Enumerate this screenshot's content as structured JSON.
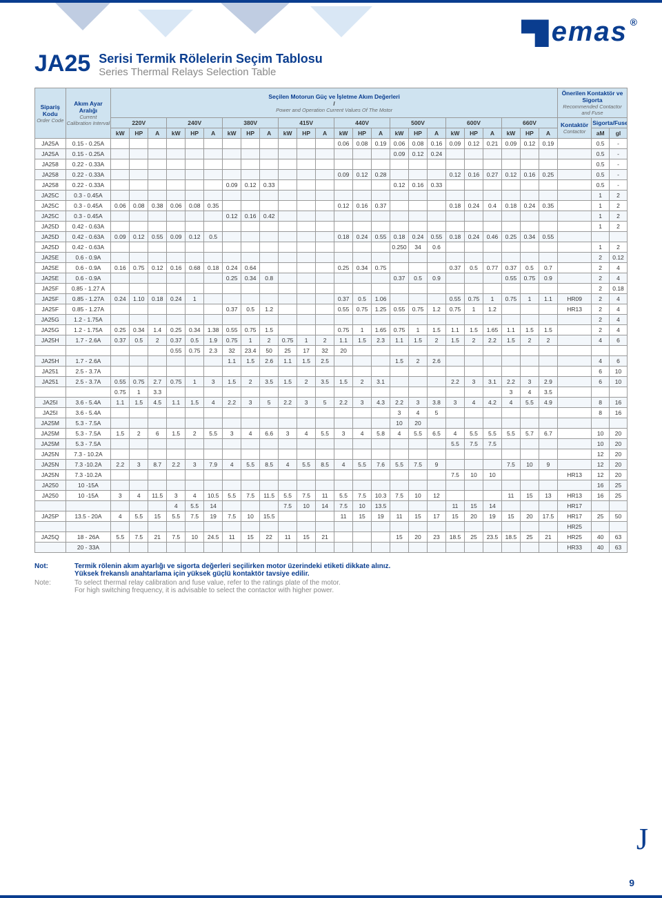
{
  "logo_text": "emas",
  "title_code": "JA25",
  "title_tr": "Serisi Termik Rölelerin Seçim Tablosu",
  "title_en": "Series Thermal Relays Selection Table",
  "hdr": {
    "order_tr": "Sipariş Kodu",
    "order_en": "Order Code",
    "range_tr": "Akım Ayar Aralığı",
    "range_en": "Current Calibration Interval",
    "motor_tr": "Seçilen Motorun Güç ve İşletme Akım Değerleri",
    "motor_en": "Power and Operation Current Values Of The Motor",
    "rec_tr": "Önerilen Kontaktör ve Sigorta",
    "rec_en": "Recommended Contactor and Fuse",
    "contactor_tr": "Kontaktör",
    "contactor_en": "Contactor",
    "fuse_tr": "Sigorta",
    "fuse_en": "Fuses",
    "kW": "kW",
    "HP": "HP",
    "A": "A",
    "aM": "aM",
    "gl": "gl"
  },
  "voltages": [
    "220V",
    "240V",
    "380V",
    "415V",
    "440V",
    "500V",
    "600V",
    "660V"
  ],
  "table_colors": {
    "header_bg": "#cfe3f0",
    "border": "#999999",
    "row_alt_bg": "#f3f7fb",
    "text_tr": "#0a3d8f",
    "text_en": "#666666"
  },
  "rows": [
    {
      "code": "JA25A",
      "range": "0.15 - 0.25A",
      "v": [
        "",
        "",
        "",
        "",
        "",
        "",
        "",
        "",
        "",
        "",
        "",
        "",
        "0.06",
        "0.08",
        "0.19",
        "0.06",
        "0.08",
        "0.16",
        "0.09",
        "0.12",
        "0.21",
        "0.09",
        "0.12",
        "0.19"
      ],
      "cont": "",
      "am": "0.5",
      "gl": "-"
    },
    {
      "code": "JA25A",
      "range": "0.15 - 0.25A",
      "v": [
        "",
        "",
        "",
        "",
        "",
        "",
        "",
        "",
        "",
        "",
        "",
        "",
        "",
        "",
        "",
        "0.09",
        "0.12",
        "0.24",
        "",
        "",
        "",
        "",
        "",
        ""
      ],
      "cont": "",
      "am": "0.5",
      "gl": "-"
    },
    {
      "code": "JA258",
      "range": "0.22 - 0.33A",
      "v": [
        "",
        "",
        "",
        "",
        "",
        "",
        "",
        "",
        "",
        "",
        "",
        "",
        "",
        "",
        "",
        "",
        "",
        "",
        "",
        "",
        "",
        "",
        "",
        ""
      ],
      "cont": "",
      "am": "0.5",
      "gl": "-"
    },
    {
      "code": "JA258",
      "range": "0.22 - 0.33A",
      "v": [
        "",
        "",
        "",
        "",
        "",
        "",
        "",
        "",
        "",
        "",
        "",
        "",
        "0.09",
        "0.12",
        "0.28",
        "",
        "",
        "",
        "0.12",
        "0.16",
        "0.27",
        "0.12",
        "0.16",
        "0.25"
      ],
      "cont": "",
      "am": "0.5",
      "gl": "-"
    },
    {
      "code": "JA258",
      "range": "0.22 - 0.33A",
      "v": [
        "",
        "",
        "",
        "",
        "",
        "",
        "0.09",
        "0.12",
        "0.33",
        "",
        "",
        "",
        "",
        "",
        "",
        "0.12",
        "0.16",
        "0.33",
        "",
        "",
        "",
        "",
        "",
        ""
      ],
      "cont": "",
      "am": "0.5",
      "gl": "-"
    },
    {
      "code": "JA25C",
      "range": "0.3 - 0.45A",
      "v": [
        "",
        "",
        "",
        "",
        "",
        "",
        "",
        "",
        "",
        "",
        "",
        "",
        "",
        "",
        "",
        "",
        "",
        "",
        "",
        "",
        "",
        "",
        "",
        ""
      ],
      "cont": "",
      "am": "1",
      "gl": "2"
    },
    {
      "code": "JA25C",
      "range": "0.3 - 0.45A",
      "v": [
        "0.06",
        "0.08",
        "0.38",
        "0.06",
        "0.08",
        "0.35",
        "",
        "",
        "",
        "",
        "",
        "",
        "0.12",
        "0.16",
        "0.37",
        "",
        "",
        "",
        "0.18",
        "0.24",
        "0.4",
        "0.18",
        "0.24",
        "0.35"
      ],
      "cont": "",
      "am": "1",
      "gl": "2"
    },
    {
      "code": "JA25C",
      "range": "0.3 - 0.45A",
      "v": [
        "",
        "",
        "",
        "",
        "",
        "",
        "0.12",
        "0.16",
        "0.42",
        "",
        "",
        "",
        "",
        "",
        "",
        "",
        "",
        "",
        "",
        "",
        "",
        "",
        "",
        ""
      ],
      "cont": "",
      "am": "1",
      "gl": "2"
    },
    {
      "code": "JA25D",
      "range": "0.42 - 0.63A",
      "v": [
        "",
        "",
        "",
        "",
        "",
        "",
        "",
        "",
        "",
        "",
        "",
        "",
        "",
        "",
        "",
        "",
        "",
        "",
        "",
        "",
        "",
        "",
        "",
        ""
      ],
      "cont": "",
      "am": "1",
      "gl": "2"
    },
    {
      "code": "JA25D",
      "range": "0.42 - 0.63A",
      "v": [
        "0.09",
        "0.12",
        "0.55",
        "0.09",
        "0.12",
        "0.5",
        "",
        "",
        "",
        "",
        "",
        "",
        "0.18",
        "0.24",
        "0.55",
        "0.18",
        "0.24",
        "0.55",
        "0.18",
        "0.24",
        "0.46",
        "0.25",
        "0.34",
        "0.55"
      ],
      "cont": "",
      "am": "",
      "gl": ""
    },
    {
      "code": "JA25D",
      "range": "0.42 - 0.63A",
      "v": [
        "",
        "",
        "",
        "",
        "",
        "",
        "",
        "",
        "",
        "",
        "",
        "",
        "",
        "",
        "",
        "0.250",
        "34",
        "0.6",
        "",
        "",
        "",
        "",
        "",
        ""
      ],
      "cont": "",
      "am": "1",
      "gl": "2"
    },
    {
      "code": "JA25E",
      "range": "0.6 - 0.9A",
      "v": [
        "",
        "",
        "",
        "",
        "",
        "",
        "",
        "",
        "",
        "",
        "",
        "",
        "",
        "",
        "",
        "",
        "",
        "",
        "",
        "",
        "",
        "",
        "",
        ""
      ],
      "cont": "",
      "am": "2",
      "gl": "0.12"
    },
    {
      "code": "JA25E",
      "range": "0.6 - 0.9A",
      "v": [
        "0.16",
        "0.75",
        "0.12",
        "0.16",
        "0.68",
        "0.18",
        "0.24",
        "0.64",
        "",
        "",
        "",
        "",
        "0.25",
        "0.34",
        "0.75",
        "",
        "",
        "",
        "0.37",
        "0.5",
        "0.77",
        "0.37",
        "0.5",
        "0.7"
      ],
      "cont": "",
      "am": "2",
      "gl": "4"
    },
    {
      "code": "JA25E",
      "range": "0.6 - 0.9A",
      "v": [
        "",
        "",
        "",
        "",
        "",
        "",
        "0.25",
        "0.34",
        "0.8",
        "",
        "",
        "",
        "",
        "",
        "",
        "0.37",
        "0.5",
        "0.9",
        "",
        "",
        "",
        "0.55",
        "0.75",
        "0.9"
      ],
      "cont": "",
      "am": "2",
      "gl": "4"
    },
    {
      "code": "JA25F",
      "range": "0.85 - 1.27 A",
      "v": [
        "",
        "",
        "",
        "",
        "",
        "",
        "",
        "",
        "",
        "",
        "",
        "",
        "",
        "",
        "",
        "",
        "",
        "",
        "",
        "",
        "",
        "",
        "",
        ""
      ],
      "cont": "",
      "am": "2",
      "gl": "0.18"
    },
    {
      "code": "JA25F",
      "range": "0.85 - 1.27A",
      "v": [
        "0.24",
        "1.10",
        "0.18",
        "0.24",
        "1",
        "",
        "",
        "",
        "",
        "",
        "",
        "",
        "0.37",
        "0.5",
        "1.06",
        "",
        "",
        "",
        "0.55",
        "0.75",
        "1",
        "0.75",
        "1",
        "1.1"
      ],
      "cont": "HR09",
      "am": "2",
      "gl": "4"
    },
    {
      "code": "JA25F",
      "range": "0.85 - 1.27A",
      "v": [
        "",
        "",
        "",
        "",
        "",
        "",
        "0.37",
        "0.5",
        "1.2",
        "",
        "",
        "",
        "0.55",
        "0.75",
        "1.25",
        "0.55",
        "0.75",
        "1.2",
        "0.75",
        "1",
        "1.2",
        "",
        "",
        ""
      ],
      "cont": "HR13",
      "am": "2",
      "gl": "4"
    },
    {
      "code": "JA25G",
      "range": "1.2 - 1.75A",
      "v": [
        "",
        "",
        "",
        "",
        "",
        "",
        "",
        "",
        "",
        "",
        "",
        "",
        "",
        "",
        "",
        "",
        "",
        "",
        "",
        "",
        "",
        "",
        "",
        ""
      ],
      "cont": "",
      "am": "2",
      "gl": "4"
    },
    {
      "code": "JA25G",
      "range": "1.2 - 1.75A",
      "v": [
        "0.25",
        "0.34",
        "1.4",
        "0.25",
        "0.34",
        "1.38",
        "0.55",
        "0.75",
        "1.5",
        "",
        "",
        "",
        "0.75",
        "1",
        "1.65",
        "0.75",
        "1",
        "1.5",
        "1.1",
        "1.5",
        "1.65",
        "1.1",
        "1.5",
        "1.5"
      ],
      "cont": "",
      "am": "2",
      "gl": "4"
    },
    {
      "code": "JA25H",
      "range": "1.7 - 2.6A",
      "v": [
        "0.37",
        "0.5",
        "2",
        "0.37",
        "0.5",
        "1.9",
        "0.75",
        "1",
        "2",
        "0.75",
        "1",
        "2",
        "1.1",
        "1.5",
        "2.3",
        "1.1",
        "1.5",
        "2",
        "1.5",
        "2",
        "2.2",
        "1.5",
        "2",
        "2"
      ],
      "cont": "",
      "am": "4",
      "gl": "6"
    },
    {
      "code": "",
      "range": "",
      "v": [
        "",
        "",
        "",
        "0.55",
        "0.75",
        "2.3",
        "32",
        "23.4",
        "50",
        "25",
        "17",
        "32",
        "20",
        "",
        "",
        "",
        "",
        "",
        "",
        "",
        "",
        "",
        "",
        ""
      ],
      "cont": "",
      "am": "",
      "gl": ""
    },
    {
      "code": "JA25H",
      "range": "1.7 - 2.6A",
      "v": [
        "",
        "",
        "",
        "",
        "",
        "",
        "1.1",
        "1.5",
        "2.6",
        "1.1",
        "1.5",
        "2.5",
        "",
        "",
        "",
        "1.5",
        "2",
        "2.6",
        "",
        "",
        "",
        "",
        "",
        ""
      ],
      "cont": "",
      "am": "4",
      "gl": "6"
    },
    {
      "code": "JA251",
      "range": "2.5 - 3.7A",
      "v": [
        "",
        "",
        "",
        "",
        "",
        "",
        "",
        "",
        "",
        "",
        "",
        "",
        "",
        "",
        "",
        "",
        "",
        "",
        "",
        "",
        "",
        "",
        "",
        ""
      ],
      "cont": "",
      "am": "6",
      "gl": "10"
    },
    {
      "code": "JA251",
      "range": "2.5 - 3.7A",
      "v": [
        "0.55",
        "0.75",
        "2.7",
        "0.75",
        "1",
        "3",
        "1.5",
        "2",
        "3.5",
        "1.5",
        "2",
        "3.5",
        "1.5",
        "2",
        "3.1",
        "",
        "",
        "",
        "2.2",
        "3",
        "3.1",
        "2.2",
        "3",
        "2.9"
      ],
      "cont": "",
      "am": "6",
      "gl": "10"
    },
    {
      "code": "",
      "range": "",
      "v": [
        "0.75",
        "1",
        "3.3",
        "",
        "",
        "",
        "",
        "",
        "",
        "",
        "",
        "",
        "",
        "",
        "",
        "",
        "",
        "",
        "",
        "",
        "",
        "3",
        "4",
        "3.5"
      ],
      "cont": "",
      "am": "",
      "gl": ""
    },
    {
      "code": "JA25I",
      "range": "3.6 - 5.4A",
      "v": [
        "1.1",
        "1.5",
        "4.5",
        "1.1",
        "1.5",
        "4",
        "2.2",
        "3",
        "5",
        "2.2",
        "3",
        "5",
        "2.2",
        "3",
        "4.3",
        "2.2",
        "3",
        "3.8",
        "3",
        "4",
        "4.2",
        "4",
        "5.5",
        "4.9"
      ],
      "cont": "",
      "am": "8",
      "gl": "16"
    },
    {
      "code": "JA25I",
      "range": "3.6 - 5.4A",
      "v": [
        "",
        "",
        "",
        "",
        "",
        "",
        "",
        "",
        "",
        "",
        "",
        "",
        "",
        "",
        "",
        "3",
        "4",
        "5",
        "",
        "",
        "",
        "",
        "",
        ""
      ],
      "cont": "",
      "am": "8",
      "gl": "16"
    },
    {
      "code": "JA25M",
      "range": "5.3 - 7.5A",
      "v": [
        "",
        "",
        "",
        "",
        "",
        "",
        "",
        "",
        "",
        "",
        "",
        "",
        "",
        "",
        "",
        "10",
        "20",
        "",
        "",
        "",
        "",
        "",
        "",
        ""
      ],
      "cont": "",
      "am": "",
      "gl": ""
    },
    {
      "code": "JA25M",
      "range": "5.3 - 7.5A",
      "v": [
        "1.5",
        "2",
        "6",
        "1.5",
        "2",
        "5.5",
        "3",
        "4",
        "6.6",
        "3",
        "4",
        "5.5",
        "3",
        "4",
        "5.8",
        "4",
        "5.5",
        "6.5",
        "4",
        "5.5",
        "5.5",
        "5.5",
        "5.7",
        "6.7"
      ],
      "cont": "",
      "am": "10",
      "gl": "20"
    },
    {
      "code": "JA25M",
      "range": "5.3 - 7.5A",
      "v": [
        "",
        "",
        "",
        "",
        "",
        "",
        "",
        "",
        "",
        "",
        "",
        "",
        "",
        "",
        "",
        "",
        "",
        "",
        "5.5",
        "7.5",
        "7.5",
        "",
        "",
        ""
      ],
      "cont": "",
      "am": "10",
      "gl": "20"
    },
    {
      "code": "JA25N",
      "range": "7.3 - 10.2A",
      "v": [
        "",
        "",
        "",
        "",
        "",
        "",
        "",
        "",
        "",
        "",
        "",
        "",
        "",
        "",
        "",
        "",
        "",
        "",
        "",
        "",
        "",
        "",
        "",
        ""
      ],
      "cont": "",
      "am": "12",
      "gl": "20"
    },
    {
      "code": "JA25N",
      "range": "7.3 -10.2A",
      "v": [
        "2.2",
        "3",
        "8.7",
        "2.2",
        "3",
        "7.9",
        "4",
        "5.5",
        "8.5",
        "4",
        "5.5",
        "8.5",
        "4",
        "5.5",
        "7.6",
        "5.5",
        "7.5",
        "9",
        "",
        "",
        "",
        "7.5",
        "10",
        "9"
      ],
      "cont": "",
      "am": "12",
      "gl": "20"
    },
    {
      "code": "JA25N",
      "range": "7.3 -10.2A",
      "v": [
        "",
        "",
        "",
        "",
        "",
        "",
        "",
        "",
        "",
        "",
        "",
        "",
        "",
        "",
        "",
        "",
        "",
        "",
        "7.5",
        "10",
        "10",
        "",
        "",
        ""
      ],
      "cont": "HR13",
      "am": "12",
      "gl": "20"
    },
    {
      "code": "JA250",
      "range": "10 -15A",
      "v": [
        "",
        "",
        "",
        "",
        "",
        "",
        "",
        "",
        "",
        "",
        "",
        "",
        "",
        "",
        "",
        "",
        "",
        "",
        "",
        "",
        "",
        "",
        "",
        ""
      ],
      "cont": "",
      "am": "16",
      "gl": "25"
    },
    {
      "code": "JA250",
      "range": "10 -15A",
      "v": [
        "3",
        "4",
        "11.5",
        "3",
        "4",
        "10.5",
        "5.5",
        "7.5",
        "11.5",
        "5.5",
        "7.5",
        "11",
        "5.5",
        "7.5",
        "10.3",
        "7.5",
        "10",
        "12",
        "",
        "",
        "",
        "11",
        "15",
        "13"
      ],
      "cont": "HR13",
      "am": "16",
      "gl": "25"
    },
    {
      "code": "",
      "range": "",
      "v": [
        "",
        "",
        "",
        "4",
        "5.5",
        "14",
        "",
        "",
        "",
        "7.5",
        "10",
        "14",
        "7.5",
        "10",
        "13.5",
        "",
        "",
        "",
        "11",
        "15",
        "14",
        "",
        "",
        ""
      ],
      "cont": "HR17",
      "am": "",
      "gl": ""
    },
    {
      "code": "JA25P",
      "range": "13.5 - 20A",
      "v": [
        "4",
        "5.5",
        "15",
        "5.5",
        "7.5",
        "19",
        "7.5",
        "10",
        "15.5",
        "",
        "",
        "",
        "11",
        "15",
        "19",
        "11",
        "15",
        "17",
        "15",
        "20",
        "19",
        "15",
        "20",
        "17.5"
      ],
      "cont": "HR17",
      "am": "25",
      "gl": "50"
    },
    {
      "code": "",
      "range": "",
      "v": [
        "",
        "",
        "",
        "",
        "",
        "",
        "",
        "",
        "",
        "",
        "",
        "",
        "",
        "",
        "",
        "",
        "",
        "",
        "",
        "",
        "",
        "",
        "",
        ""
      ],
      "cont": "HR25",
      "am": "",
      "gl": ""
    },
    {
      "code": "JA25Q",
      "range": "18 - 26A",
      "v": [
        "5.5",
        "7.5",
        "21",
        "7.5",
        "10",
        "24.5",
        "11",
        "15",
        "22",
        "11",
        "15",
        "21",
        "",
        "",
        "",
        "15",
        "20",
        "23",
        "18.5",
        "25",
        "23.5",
        "18.5",
        "25",
        "21"
      ],
      "cont": "HR25",
      "am": "40",
      "gl": "63"
    },
    {
      "code": "",
      "range": "20 - 33A",
      "v": [
        "",
        "",
        "",
        "",
        "",
        "",
        "",
        "",
        "",
        "",
        "",
        "",
        "",
        "",
        "",
        "",
        "",
        "",
        "",
        "",
        "",
        "",
        "",
        ""
      ],
      "cont": "HR33",
      "am": "40",
      "gl": "63"
    }
  ],
  "notes": {
    "not_label": "Not:",
    "note_label": "Note:",
    "tr1": "Termik rölenin akım ayarlığı ve sigorta değerleri seçilirken motor üzerindeki etiketi dikkate alınız.",
    "tr2": "Yüksek frekanslı anahtarlama için yüksek güçlü kontaktör tavsiye edilir.",
    "en1": "To select thermal relay calibration and fuse value, refer to the ratings plate of the motor.",
    "en2": "For high switching frequency, it is advisable to select the contactor with higher power."
  },
  "page_letter": "J",
  "page_number": "9"
}
